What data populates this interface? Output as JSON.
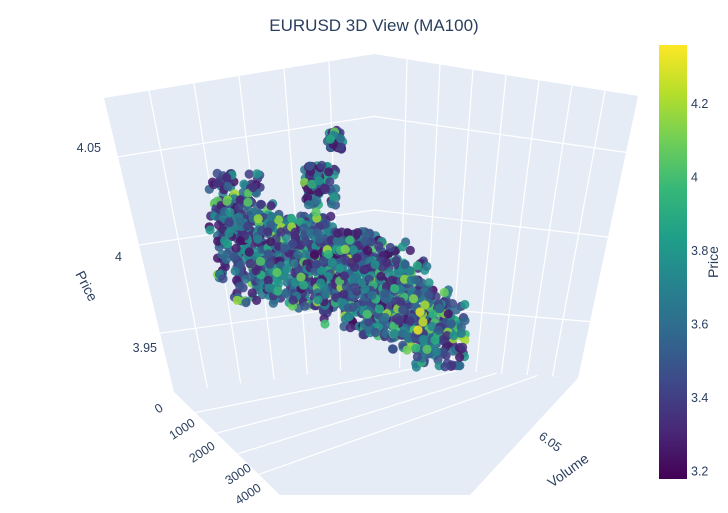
{
  "chart_data": {
    "type": "scatter3d",
    "title": "EURUSD 3D View (MA100)",
    "axes": {
      "x": {
        "label": "",
        "ticks": [
          "0",
          "1000",
          "2000",
          "3000",
          "4000"
        ],
        "range": [
          0,
          4000
        ]
      },
      "y": {
        "label": "Volume",
        "ticks": [
          "6.05"
        ],
        "range": [
          6.0,
          6.1
        ]
      },
      "z": {
        "label": "Price",
        "ticks": [
          "3.95",
          "4",
          "4.05"
        ],
        "range": [
          3.94,
          4.06
        ]
      }
    },
    "colorbar": {
      "title": "Price",
      "ticks": [
        "3.2",
        "3.4",
        "3.6",
        "3.8",
        "4",
        "4.2"
      ],
      "range": [
        3.18,
        4.36
      ],
      "colorscale": "viridis"
    },
    "series_summary": [
      {
        "x": 0,
        "y": 6.06,
        "z": 4.01
      },
      {
        "x": 500,
        "y": 6.06,
        "z": 4.005
      },
      {
        "x": 1000,
        "y": 6.055,
        "z": 3.995
      },
      {
        "x": 1500,
        "y": 6.055,
        "z": 3.99
      },
      {
        "x": 2000,
        "y": 6.05,
        "z": 3.985
      },
      {
        "x": 2500,
        "y": 6.05,
        "z": 3.98
      },
      {
        "x": 3000,
        "y": 6.045,
        "z": 3.975
      },
      {
        "x": 3500,
        "y": 6.045,
        "z": 3.965
      },
      {
        "x": 4000,
        "y": 6.04,
        "z": 3.96
      }
    ]
  }
}
